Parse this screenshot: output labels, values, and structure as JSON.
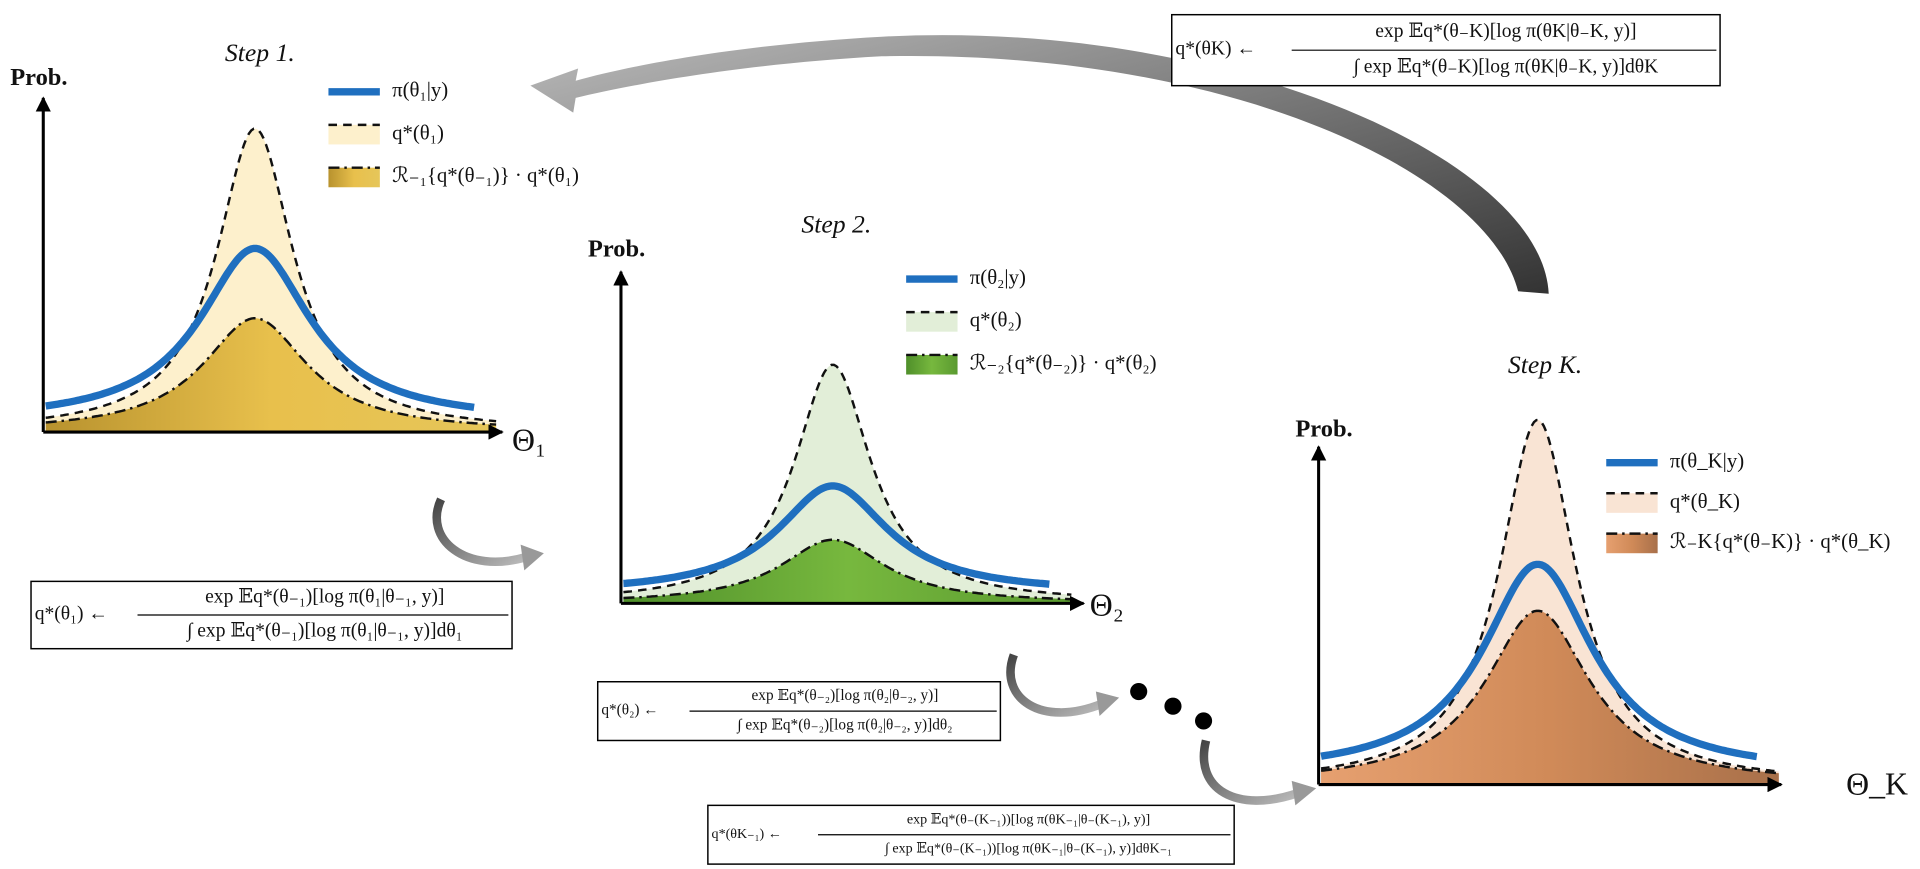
{
  "steps": [
    {
      "title": "Step 1.",
      "y_label": "Prob.",
      "x_label": "Θ₁",
      "legend": [
        "π(θ₁|y)",
        "q*(θ₁)",
        "ℛ₋₁{q*(θ₋₁)} · q*(θ₁)"
      ]
    },
    {
      "title": "Step 2.",
      "y_label": "Prob.",
      "x_label": "Θ₂",
      "legend": [
        "π(θ₂|y)",
        "q*(θ₂)",
        "ℛ₋₂{q*(θ₋₂)} · q*(θ₂)"
      ]
    },
    {
      "title": "Step K.",
      "y_label": "Prob.",
      "x_label": "Θ_K",
      "legend": [
        "π(θ_K|y)",
        "q*(θ_K)",
        "ℛ₋K{q*(θ₋K)} · q*(θ_K)"
      ]
    }
  ],
  "updates": [
    {
      "lhs": "q*(θ₁) ←",
      "numerator": "exp 𝔼q*(θ₋₁)[log π(θ₁|θ₋₁, y)]",
      "denominator": "∫ exp 𝔼q*(θ₋₁)[log π(θ₁|θ₋₁, y)]dθ₁"
    },
    {
      "lhs": "q*(θ₂) ←",
      "numerator": "exp 𝔼q*(θ₋₂)[log π(θ₂|θ₋₂, y)]",
      "denominator": "∫ exp 𝔼q*(θ₋₂)[log π(θ₂|θ₋₂, y)]dθ₂"
    },
    {
      "lhs": "q*(θK₋₁) ←",
      "numerator": "exp 𝔼q*(θ₋(K₋₁))[log π(θK₋₁|θ₋(K₋₁), y)]",
      "denominator": "∫ exp 𝔼q*(θ₋(K₋₁))[log π(θK₋₁|θ₋(K₋₁), y)]dθK₋₁"
    },
    {
      "lhs": "q*(θK) ←",
      "numerator": "exp 𝔼q*(θ₋K)[log π(θK|θ₋K, y)]",
      "denominator": "∫ exp 𝔼q*(θ₋K)[log π(θK|θ₋K, y)]dθK"
    }
  ]
}
